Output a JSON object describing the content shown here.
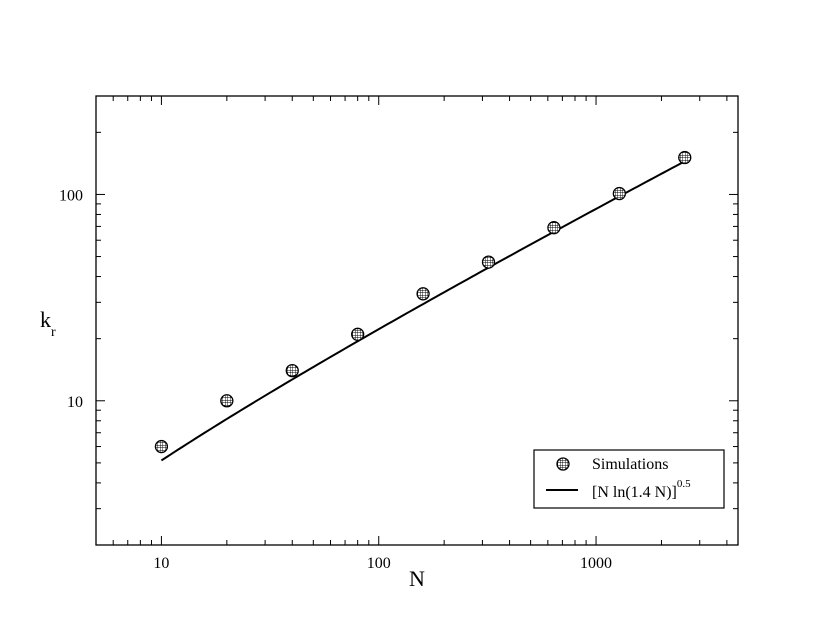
{
  "chart_data": {
    "type": "scatter",
    "xlabel": "N",
    "ylabel": {
      "main": "k",
      "sub": "r"
    },
    "x_scale": "log",
    "y_scale": "log",
    "xlim": [
      5,
      4500
    ],
    "ylim": [
      2,
      300
    ],
    "x_ticks": [
      {
        "value": 10,
        "label": "10"
      },
      {
        "value": 100,
        "label": "100"
      },
      {
        "value": 1000,
        "label": "1000"
      }
    ],
    "y_ticks": [
      {
        "value": 10,
        "label": "10"
      },
      {
        "value": 100,
        "label": "100"
      }
    ],
    "grid": false,
    "legend_position": "bottom-right",
    "series": [
      {
        "name": "Simulations",
        "kind": "markers",
        "marker": "hatched-circle",
        "x": [
          10,
          20,
          40,
          80,
          160,
          320,
          640,
          1280,
          2560
        ],
        "y": [
          6.0,
          10.0,
          14.0,
          21.0,
          33.0,
          47.0,
          69.0,
          101.0,
          151.0
        ]
      },
      {
        "name": "[N ln(1.4 N)]",
        "name_superscript": "0.5",
        "kind": "line",
        "formula": "sqrt(N*ln(1.4*N))",
        "x_range": [
          10,
          2560
        ]
      }
    ]
  }
}
